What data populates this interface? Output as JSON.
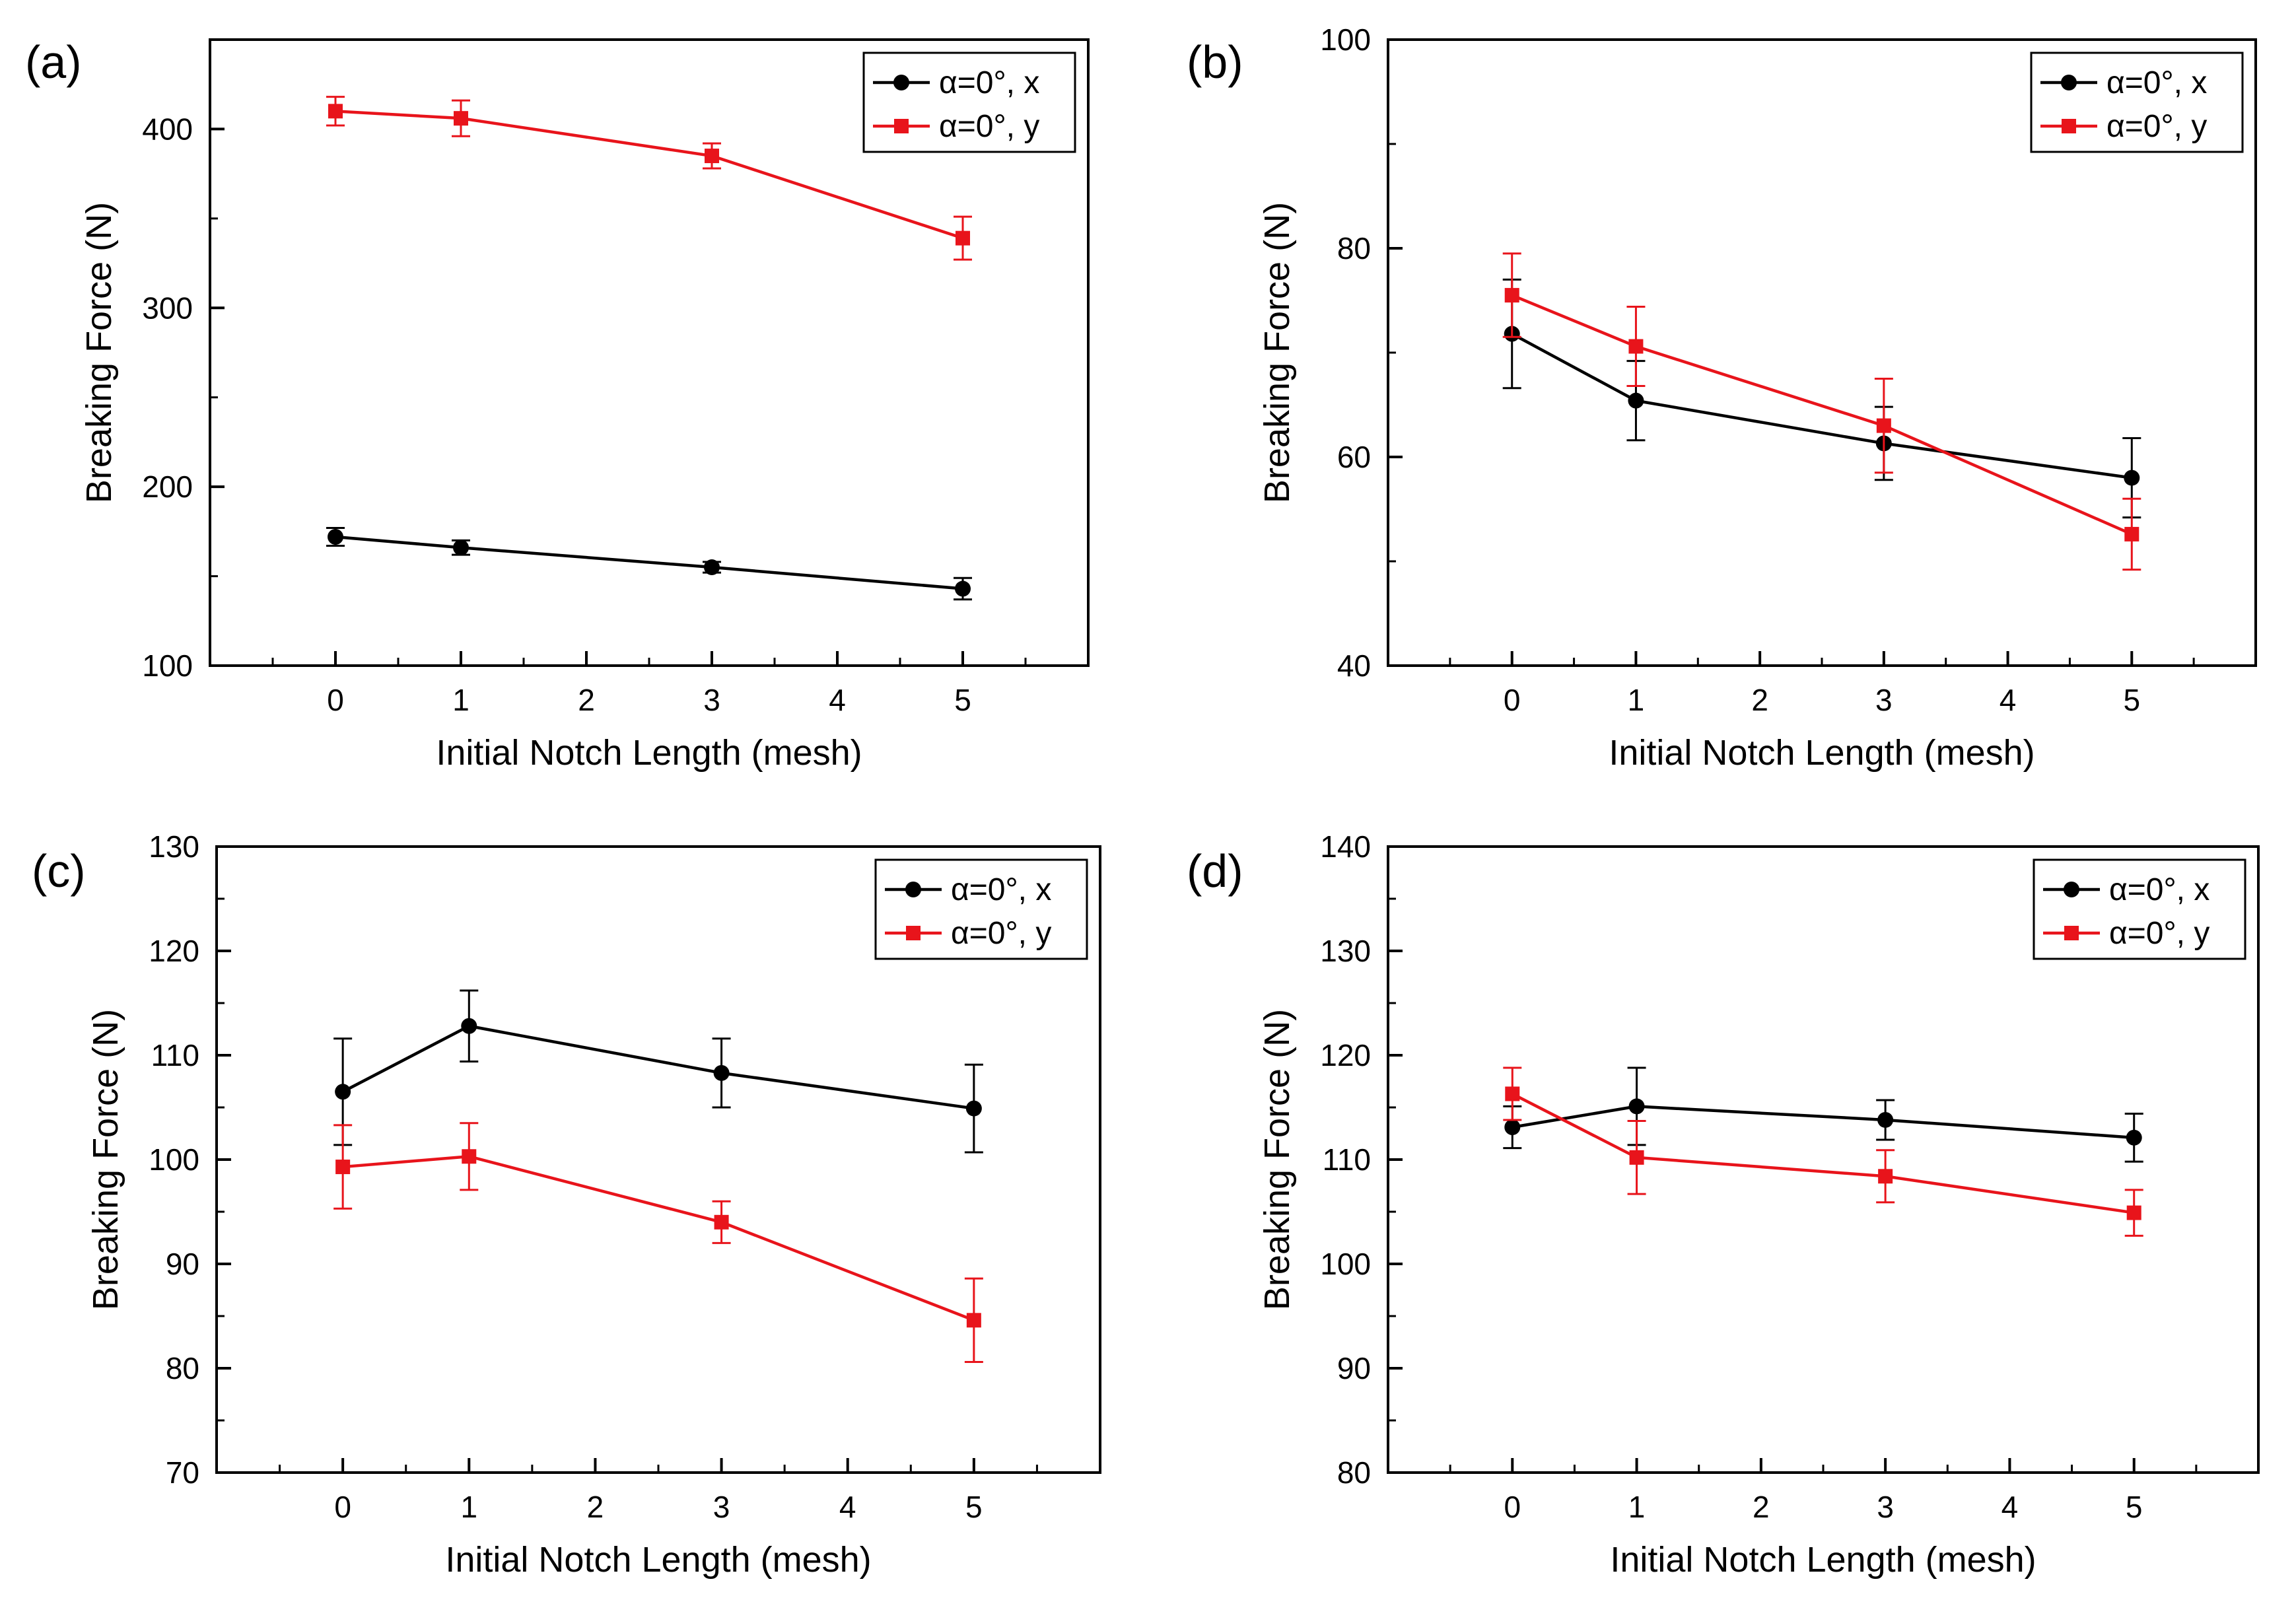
{
  "chart_data": [
    {
      "type": "line",
      "panel_label": "(a)",
      "xlabel": "Initial Notch Length (mesh)",
      "ylabel": "Breaking Force (N)",
      "xlim": [
        -1,
        6
      ],
      "ylim": [
        100,
        450
      ],
      "xticks": [
        0,
        1,
        2,
        3,
        4,
        5
      ],
      "yticks": [
        100,
        200,
        300,
        400
      ],
      "ytick_labels": [
        "100",
        "200",
        "300",
        "400"
      ],
      "legend_position": "top-right",
      "series": [
        {
          "name": "α=0°, x",
          "color": "#000000",
          "marker": "circle",
          "x": [
            0,
            1,
            3,
            5
          ],
          "y": [
            172,
            166,
            155,
            143
          ],
          "err": [
            5,
            4,
            3,
            6
          ]
        },
        {
          "name": "α=0°, y",
          "color": "#e8141b",
          "marker": "square",
          "x": [
            0,
            1,
            3,
            5
          ],
          "y": [
            410,
            406,
            385,
            339
          ],
          "err": [
            8,
            10,
            7,
            12
          ]
        }
      ]
    },
    {
      "type": "line",
      "panel_label": "(b)",
      "xlabel": "Initial Notch Length (mesh)",
      "ylabel": "Breaking Force (N)",
      "xlim": [
        -1,
        6
      ],
      "ylim": [
        40,
        100
      ],
      "xticks": [
        0,
        1,
        2,
        3,
        4,
        5
      ],
      "yticks": [
        40,
        60,
        80,
        100
      ],
      "ytick_labels": [
        "40",
        "60",
        "80",
        "100"
      ],
      "legend_position": "top-right",
      "series": [
        {
          "name": "α=0°, x",
          "color": "#000000",
          "marker": "circle",
          "x": [
            0,
            1,
            3,
            5
          ],
          "y": [
            71.8,
            65.4,
            61.3,
            58.0
          ],
          "err": [
            5.2,
            3.8,
            3.5,
            3.8
          ]
        },
        {
          "name": "α=0°, y",
          "color": "#e8141b",
          "marker": "square",
          "x": [
            0,
            1,
            3,
            5
          ],
          "y": [
            75.5,
            70.6,
            63.0,
            52.6
          ],
          "err": [
            4.0,
            3.8,
            4.5,
            3.4
          ]
        }
      ]
    },
    {
      "type": "line",
      "panel_label": "(c)",
      "xlabel": "Initial Notch Length (mesh)",
      "ylabel": "Breaking Force (N)",
      "xlim": [
        -1,
        6
      ],
      "ylim": [
        70,
        130
      ],
      "xticks": [
        0,
        1,
        2,
        3,
        4,
        5
      ],
      "yticks": [
        70,
        80,
        90,
        100,
        110,
        120,
        130
      ],
      "ytick_labels": [
        "70",
        "80",
        "90",
        "100",
        "110",
        "120",
        "130"
      ],
      "legend_position": "top-right",
      "series": [
        {
          "name": "α=0°, x",
          "color": "#000000",
          "marker": "circle",
          "x": [
            0,
            1,
            3,
            5
          ],
          "y": [
            106.5,
            112.8,
            108.3,
            104.9
          ],
          "err": [
            5.1,
            3.4,
            3.3,
            4.2
          ]
        },
        {
          "name": "α=0°, y",
          "color": "#e8141b",
          "marker": "square",
          "x": [
            0,
            1,
            3,
            5
          ],
          "y": [
            99.3,
            100.3,
            94.0,
            84.6
          ],
          "err": [
            4.0,
            3.2,
            2.0,
            4.0
          ]
        }
      ]
    },
    {
      "type": "line",
      "panel_label": "(d)",
      "xlabel": "Initial Notch Length (mesh)",
      "ylabel": "Breaking Force (N)",
      "xlim": [
        -1,
        6
      ],
      "ylim": [
        80,
        140
      ],
      "xticks": [
        0,
        1,
        2,
        3,
        4,
        5
      ],
      "yticks": [
        80,
        90,
        100,
        110,
        120,
        130,
        140
      ],
      "ytick_labels": [
        "80",
        "90",
        "100",
        "110",
        "120",
        "130",
        "140"
      ],
      "legend_position": "top-right",
      "series": [
        {
          "name": "α=0°, x",
          "color": "#000000",
          "marker": "circle",
          "x": [
            0,
            1,
            3,
            5
          ],
          "y": [
            113.1,
            115.1,
            113.8,
            112.1
          ],
          "err": [
            2.0,
            3.7,
            1.9,
            2.3
          ]
        },
        {
          "name": "α=0°, y",
          "color": "#e8141b",
          "marker": "square",
          "x": [
            0,
            1,
            3,
            5
          ],
          "y": [
            116.3,
            110.2,
            108.4,
            104.9
          ],
          "err": [
            2.5,
            3.5,
            2.5,
            2.2
          ]
        }
      ]
    }
  ]
}
